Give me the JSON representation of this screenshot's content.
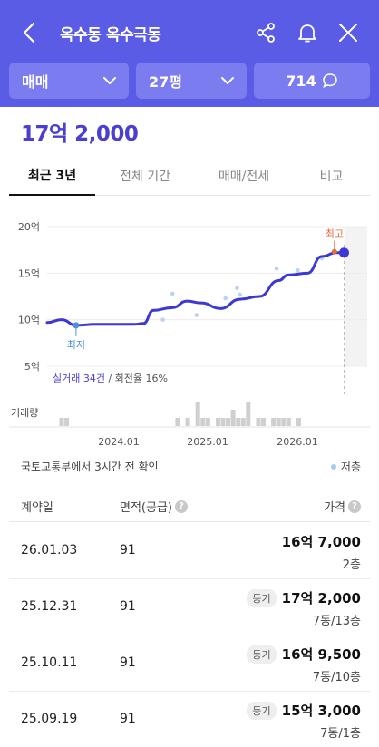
{
  "header": {
    "title": "옥수동 옥수극동",
    "filters": [
      {
        "label": "매매"
      },
      {
        "label": "27평"
      },
      {
        "label": "714"
      }
    ]
  },
  "price": "17억 2,000",
  "tabs": [
    {
      "label": "최근 3년",
      "active": true
    },
    {
      "label": "전체 기간",
      "active": false
    },
    {
      "label": "매매/전세",
      "active": false
    },
    {
      "label": "비교",
      "active": false
    }
  ],
  "chart_data": {
    "type": "line",
    "y_ticks": [
      "20억",
      "15억",
      "10억",
      "5억"
    ],
    "ylim": [
      5,
      20
    ],
    "x_ticks": [
      "2024.01",
      "2025.01",
      "2026.01"
    ],
    "series": [
      {
        "x": [
          2023.0,
          2023.15,
          2023.3,
          2023.5,
          2023.9,
          2024.0,
          2024.1,
          2024.3,
          2024.45,
          2024.6,
          2024.8,
          2025.0,
          2025.2,
          2025.4,
          2025.5,
          2025.7,
          2025.85,
          2026.0,
          2026.08
        ],
        "values": [
          9.7,
          10.0,
          9.4,
          9.5,
          9.5,
          9.6,
          11.0,
          11.3,
          12.0,
          11.8,
          11.2,
          12.2,
          12.5,
          14.2,
          14.8,
          15.0,
          16.8,
          17.2,
          17.2
        ]
      }
    ],
    "points": [
      {
        "x": 2024.2,
        "y": 10.0
      },
      {
        "x": 2024.28,
        "y": 11.3
      },
      {
        "x": 2024.3,
        "y": 12.8
      },
      {
        "x": 2024.55,
        "y": 10.5
      },
      {
        "x": 2024.85,
        "y": 12.3
      },
      {
        "x": 2024.97,
        "y": 13.4
      },
      {
        "x": 2025.0,
        "y": 12.7
      },
      {
        "x": 2025.38,
        "y": 15.5
      },
      {
        "x": 2025.6,
        "y": 15.3
      },
      {
        "x": 2025.85,
        "y": 16.6
      }
    ],
    "min": {
      "label": "최저",
      "x": 2023.3,
      "y": 9.4
    },
    "max": {
      "label": "최고",
      "x": 2025.98,
      "y": 17.3
    },
    "summary_count": "실거래 34건",
    "summary_rate": " / 회전율 16%",
    "volume_label": "거래량",
    "volume": [
      1,
      1,
      0,
      0,
      0,
      0,
      0,
      0,
      0,
      0,
      0,
      0,
      0,
      0,
      0,
      0,
      0,
      0,
      0,
      0,
      0,
      0,
      0,
      1,
      0,
      1,
      0,
      3,
      1,
      1,
      0,
      1,
      1,
      1,
      2,
      1,
      1,
      3,
      0,
      1,
      1,
      0,
      1,
      1,
      1,
      1,
      0,
      1,
      0
    ]
  },
  "source": "국토교통부에서 3시간 전 확인",
  "legend_label": "저층",
  "table": {
    "headers": [
      "계약일",
      "면적(공급)",
      "가격"
    ],
    "rows": [
      {
        "date": "26.01.03",
        "area": "91",
        "badge": "",
        "price": "16억 7,000",
        "floor": "2층"
      },
      {
        "date": "25.12.31",
        "area": "91",
        "badge": "등기",
        "price": "17억 2,000",
        "floor": "7동/13층"
      },
      {
        "date": "25.10.11",
        "area": "91",
        "badge": "등기",
        "price": "16억 9,500",
        "floor": "7동/10층"
      },
      {
        "date": "25.09.19",
        "area": "91",
        "badge": "등기",
        "price": "15억 3,000",
        "floor": "7동/1층"
      }
    ]
  },
  "colors": {
    "header": "#5b5ce6",
    "accent": "#4a3fd1",
    "line": "#3d37d4",
    "max": "#e8683a",
    "min": "#4a8fe0"
  }
}
